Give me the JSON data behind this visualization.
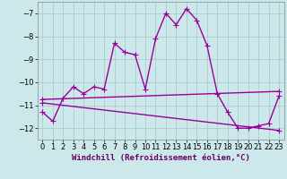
{
  "title": "",
  "xlabel": "Windchill (Refroidissement éolien,°C)",
  "bg_color": "#cde8eb",
  "grid_color": "#aacdd1",
  "line_color": "#990099",
  "xlim": [
    -0.5,
    23.5
  ],
  "ylim": [
    -12.5,
    -6.5
  ],
  "yticks": [
    -12,
    -11,
    -10,
    -9,
    -8,
    -7
  ],
  "xticks": [
    0,
    1,
    2,
    3,
    4,
    5,
    6,
    7,
    8,
    9,
    10,
    11,
    12,
    13,
    14,
    15,
    16,
    17,
    18,
    19,
    20,
    21,
    22,
    23
  ],
  "line1_x": [
    0,
    1,
    2,
    3,
    4,
    5,
    6,
    7,
    8,
    9,
    10,
    11,
    12,
    13,
    14,
    15,
    16,
    17,
    18,
    19,
    20,
    21,
    22,
    23
  ],
  "line1_y": [
    -11.3,
    -11.7,
    -10.7,
    -10.2,
    -10.5,
    -10.2,
    -10.3,
    -8.3,
    -8.7,
    -8.8,
    -10.3,
    -8.1,
    -7.0,
    -7.5,
    -6.8,
    -7.3,
    -8.4,
    -10.5,
    -11.3,
    -12.0,
    -12.0,
    -11.9,
    -11.8,
    -10.6
  ],
  "line2_x": [
    0,
    23
  ],
  "line2_y": [
    -10.75,
    -10.4
  ],
  "line3_x": [
    0,
    23
  ],
  "line3_y": [
    -10.9,
    -12.1
  ],
  "marker": "+",
  "markersize": 4,
  "linewidth": 1.0,
  "tick_fontsize": 6,
  "xlabel_fontsize": 6.5
}
